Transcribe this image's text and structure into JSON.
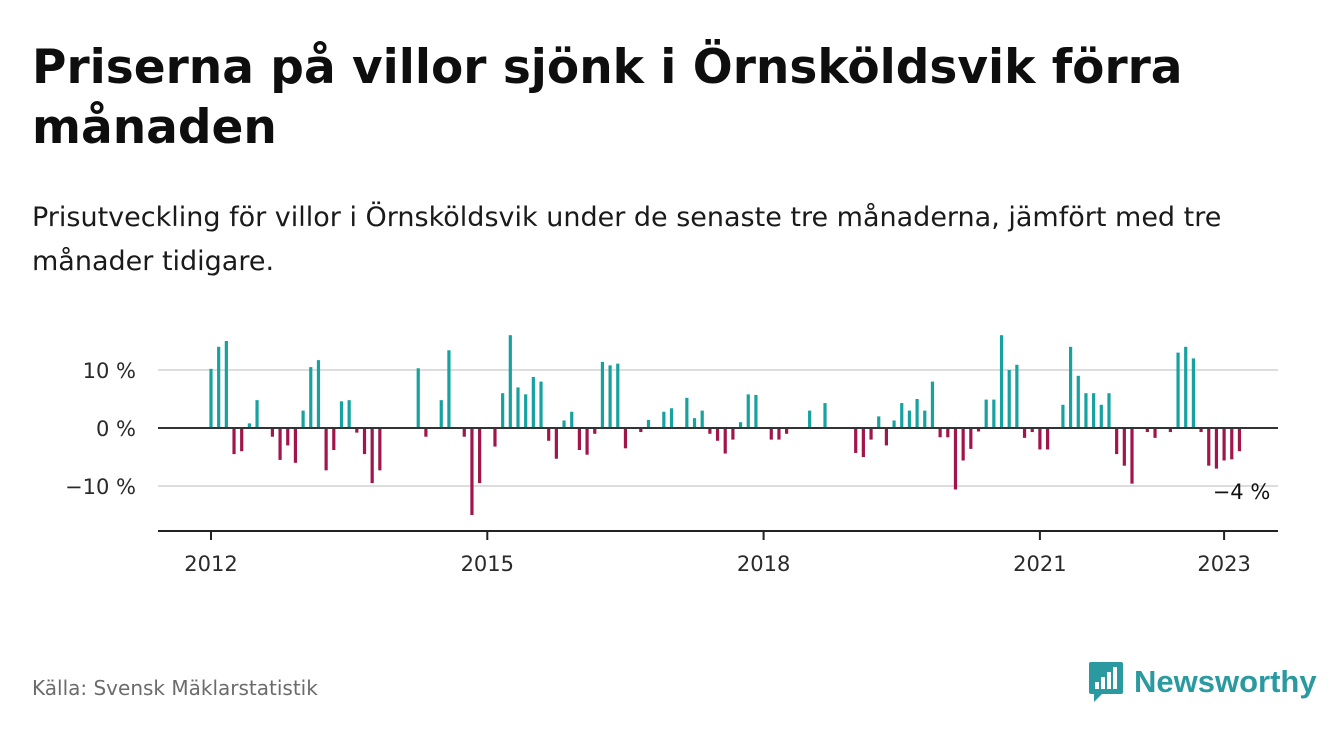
{
  "title": "Priserna på villor sjönk i Örnsköldsvik förra månaden",
  "subtitle": "Prisutveckling för villor i Örnsköldsvik under de senaste tre månaderna, jämfört med tre månader tidigare.",
  "source": "Källa: Svensk Mäklarstatistik",
  "brand": {
    "name": "Newsworthy",
    "icon": "newsworthy-logo-icon"
  },
  "colors": {
    "positive": "#17a2a0",
    "negative": "#a1154a",
    "grid": "#dddddd",
    "axis": "#222222"
  },
  "chart_data": {
    "type": "bar",
    "ylim": [
      -17,
      18
    ],
    "yticks": [
      {
        "value": 10,
        "label": "10 %"
      },
      {
        "value": 0,
        "label": "0 %"
      },
      {
        "value": -10,
        "label": "−10 %"
      }
    ],
    "xticks": [
      {
        "value": 2012,
        "label": "2012"
      },
      {
        "value": 2015,
        "label": "2015"
      },
      {
        "value": 2018,
        "label": "2018"
      },
      {
        "value": 2021,
        "label": "2021"
      },
      {
        "value": 2023,
        "label": "2023"
      }
    ],
    "x_start": "2012-01",
    "annotation": {
      "text": "−4 %"
    },
    "values": [
      10.2,
      14,
      15,
      -4.5,
      -4,
      0.8,
      4.8,
      0,
      -1.5,
      -5.5,
      -3,
      -6,
      3,
      10.5,
      11.7,
      -7.3,
      -3.8,
      4.6,
      4.8,
      -0.8,
      -4.5,
      -9.5,
      -7.3,
      0,
      0,
      0,
      0,
      10.3,
      -1.5,
      0,
      4.8,
      13.4,
      0,
      -1.5,
      -15,
      -9.5,
      0,
      -3.2,
      6,
      16,
      7,
      5.8,
      8.8,
      8,
      -2.2,
      -5.3,
      1.3,
      2.8,
      -3.8,
      -4.6,
      -1,
      11.4,
      10.8,
      11.1,
      -3.5,
      0,
      -0.7,
      1.4,
      0,
      2.8,
      3.4,
      0,
      5.2,
      1.7,
      3,
      -1,
      -2.2,
      -4.4,
      -2,
      1,
      5.8,
      5.7,
      0,
      -2,
      -2,
      -1,
      0,
      0,
      3,
      0,
      4.3,
      0,
      0,
      0,
      -4.3,
      -5,
      -2,
      2,
      -3,
      1.3,
      4.3,
      3,
      5,
      3,
      8,
      -1.6,
      -1.6,
      -10.6,
      -5.6,
      -3.6,
      -0.6,
      4.9,
      4.9,
      16,
      10,
      10.9,
      -1.7,
      -0.7,
      -3.7,
      -3.7,
      0,
      4,
      14,
      9,
      6,
      6,
      4,
      6,
      -4.5,
      -6.5,
      -9.6,
      0,
      -0.7,
      -1.7,
      0,
      -0.7,
      13,
      14,
      12,
      -0.7,
      -6.5,
      -7,
      -5.6,
      -5.4,
      -4
    ]
  }
}
